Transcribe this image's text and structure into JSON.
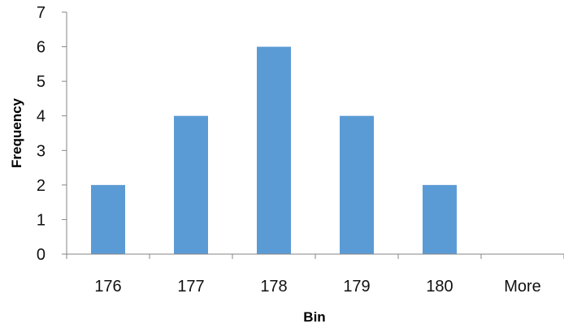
{
  "chart_data": {
    "type": "bar",
    "categories": [
      "176",
      "177",
      "178",
      "179",
      "180",
      "More"
    ],
    "values": [
      2,
      4,
      6,
      4,
      2,
      0
    ],
    "title": "",
    "xlabel": "Bin",
    "ylabel": "Frequency",
    "ylim": [
      0,
      7
    ],
    "yticks": [
      "0",
      "1",
      "2",
      "3",
      "4",
      "5",
      "6",
      "7"
    ],
    "grid": false,
    "legend": "none",
    "colors": {
      "bar": "#5B9BD5",
      "axis": "#868686"
    }
  }
}
